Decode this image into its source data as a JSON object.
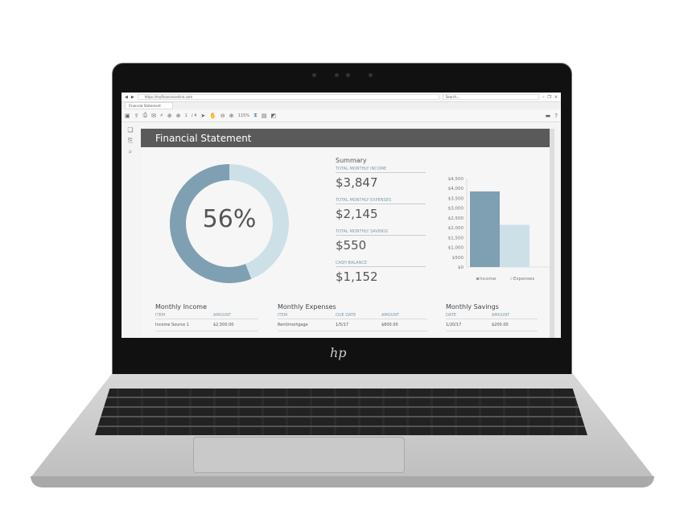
{
  "browser": {
    "url": "https://myfinancesonline.com",
    "search_placeholder": "Search...",
    "tab": "Financial Statement",
    "page_current": "1",
    "page_total": "/ 4",
    "zoom": "115%"
  },
  "doc": {
    "title": "Financial Statement",
    "savings_percent": 56,
    "percent_label": "56%",
    "summary": {
      "heading": "Summary",
      "items": [
        {
          "label": "TOTAL MONTHLY INCOME",
          "value": "$3,847"
        },
        {
          "label": "TOTAL MONTHLY EXPENSES",
          "value": "$2,145"
        },
        {
          "label": "TOTAL MONTHLY SAVINGS",
          "value": "$550"
        },
        {
          "label": "CASH BALANCE",
          "value": "$1,152"
        }
      ]
    },
    "income": {
      "title": "Monthly Income",
      "headers": [
        "ITEM",
        "AMOUNT"
      ],
      "rows": [
        [
          "Income Source 1",
          "$2,500.00"
        ]
      ]
    },
    "expenses": {
      "title": "Monthly Expenses",
      "headers": [
        "ITEM",
        "DUE DATE",
        "AMOUNT"
      ],
      "rows": [
        [
          "Rent/mortgage",
          "1/5/17",
          "$800.00"
        ]
      ]
    },
    "savings": {
      "title": "Monthly Savings",
      "headers": [
        "DATE",
        "AMOUNT"
      ],
      "rows": [
        [
          "1/20/17",
          "$200.00"
        ]
      ]
    }
  },
  "chart_data": {
    "type": "bar",
    "categories": [
      "Income",
      "Expenses"
    ],
    "values": [
      3847,
      2145
    ],
    "ylim": [
      0,
      4500
    ],
    "yticks": [
      "$0",
      "$500",
      "$1,000",
      "$1,500",
      "$2,000",
      "$2,500",
      "$3,000",
      "$3,500",
      "$4,000",
      "$4,500"
    ],
    "legend": [
      "Income",
      "Expenses"
    ],
    "legend_position": "bottom",
    "colors": [
      "#7f9fb3",
      "#cde0e8"
    ]
  },
  "colors": {
    "donut_dark": "#7f9fb3",
    "donut_light": "#cde0e8",
    "header": "#5a5a5a"
  }
}
